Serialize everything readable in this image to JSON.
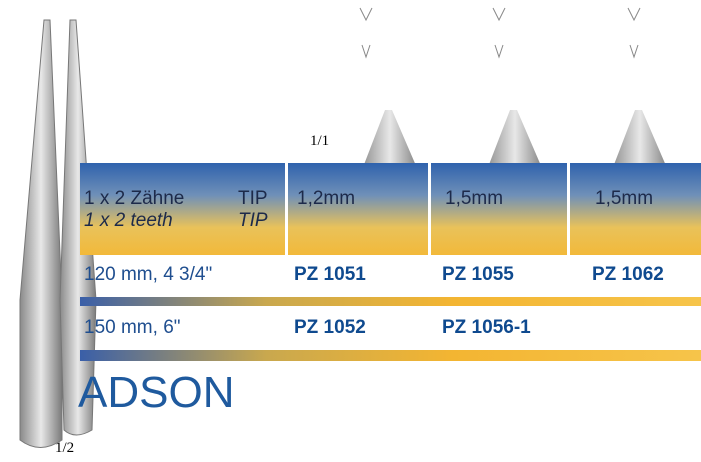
{
  "scale_top": "1/1",
  "header": {
    "label_de": "1 x 2 Zähne",
    "tip_de": "TIP",
    "label_en": "1 x 2 teeth",
    "tip_en": "TIP",
    "tip_sizes": [
      "1,2mm",
      "1,5mm",
      "1,5mm"
    ]
  },
  "rows": [
    {
      "length": "120 mm, 4 3/4\"",
      "codes": [
        "PZ 1051",
        "PZ 1055",
        "PZ 1062"
      ]
    },
    {
      "length": "150 mm, 6\"",
      "codes": [
        "PZ 1052",
        "PZ 1056-1",
        null
      ]
    }
  ],
  "title": "ADSON",
  "scale_bottom": "1/2"
}
